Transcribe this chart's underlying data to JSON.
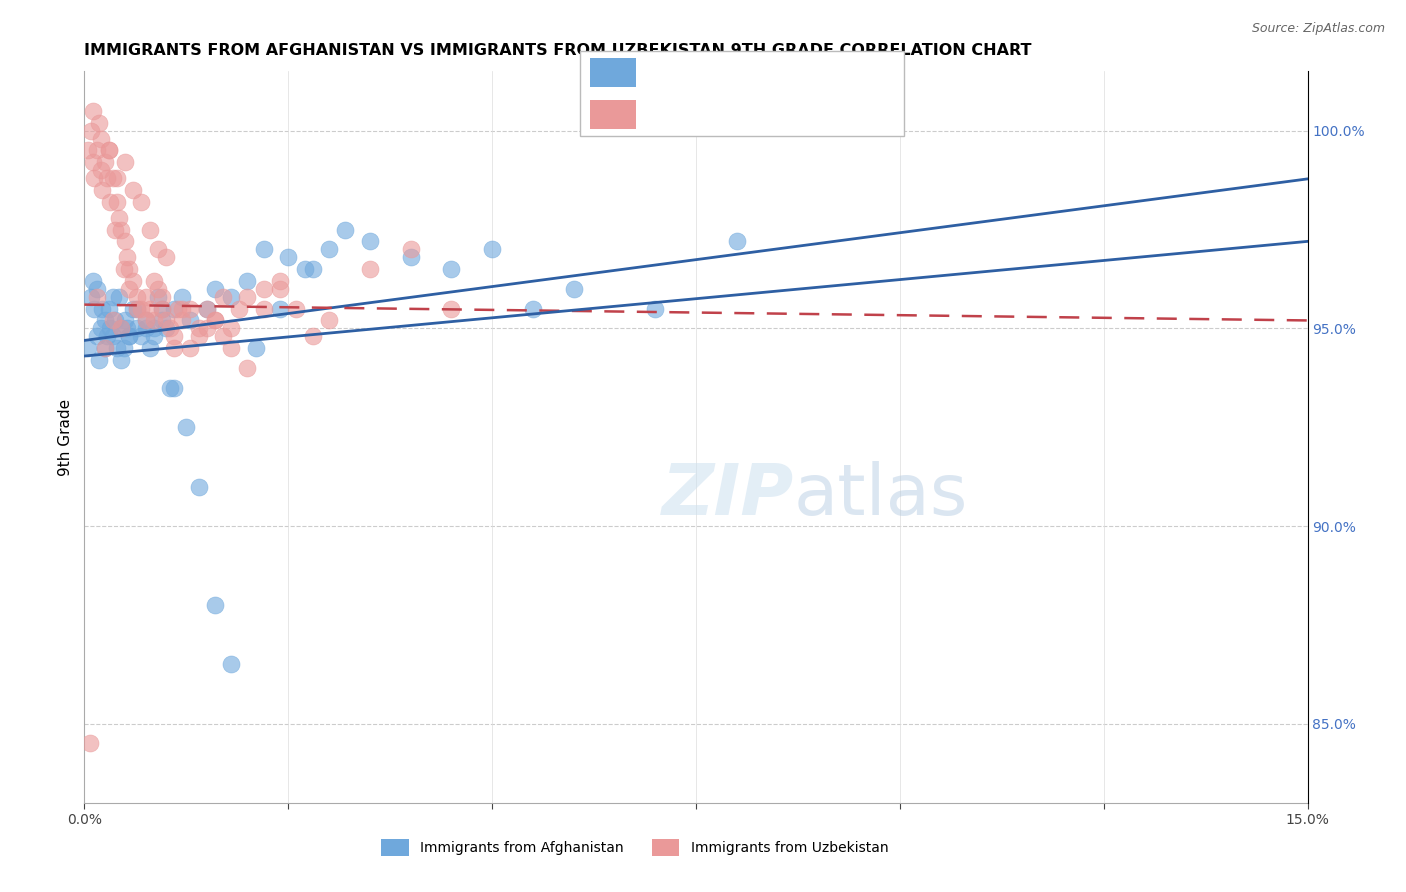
{
  "title": "IMMIGRANTS FROM AFGHANISTAN VS IMMIGRANTS FROM UZBEKISTAN 9TH GRADE CORRELATION CHART",
  "source": "Source: ZipAtlas.com",
  "ylabel": "9th Grade",
  "right_yticks": [
    100.0,
    95.0,
    90.0,
    85.0
  ],
  "xlim": [
    0.0,
    15.0
  ],
  "ylim": [
    83.0,
    101.5
  ],
  "afghanistan_color": "#6fa8dc",
  "uzbekistan_color": "#ea9999",
  "afghanistan_line_color": "#2e5fa3",
  "uzbekistan_line_color": "#c0414a",
  "legend_label1": "Immigrants from Afghanistan",
  "legend_label2": "Immigrants from Uzbekistan",
  "af_x": [
    0.05,
    0.08,
    0.1,
    0.12,
    0.15,
    0.18,
    0.2,
    0.22,
    0.25,
    0.28,
    0.3,
    0.32,
    0.35,
    0.38,
    0.4,
    0.42,
    0.45,
    0.48,
    0.5,
    0.52,
    0.55,
    0.6,
    0.65,
    0.7,
    0.75,
    0.8,
    0.85,
    0.9,
    0.95,
    1.0,
    1.05,
    1.1,
    1.2,
    1.3,
    1.5,
    1.6,
    1.8,
    2.0,
    2.2,
    2.5,
    2.8,
    3.0,
    3.5,
    4.0,
    4.5,
    5.0,
    5.5,
    6.0,
    7.0,
    8.0,
    0.15,
    0.25,
    0.35,
    0.45,
    0.55,
    0.65,
    0.75,
    0.85,
    0.95,
    1.1,
    1.25,
    1.4,
    1.6,
    1.8,
    2.1,
    2.4,
    2.7,
    3.2
  ],
  "af_y": [
    94.5,
    95.8,
    96.2,
    95.5,
    94.8,
    94.2,
    95.0,
    95.5,
    95.2,
    94.8,
    95.5,
    95.0,
    94.8,
    95.2,
    94.5,
    95.8,
    95.0,
    94.5,
    95.2,
    95.0,
    94.8,
    95.5,
    95.0,
    94.8,
    95.2,
    94.5,
    95.0,
    95.8,
    95.2,
    95.0,
    93.5,
    95.5,
    95.8,
    95.2,
    95.5,
    96.0,
    95.8,
    96.2,
    97.0,
    96.8,
    96.5,
    97.0,
    97.2,
    96.8,
    96.5,
    97.0,
    95.5,
    96.0,
    95.5,
    97.2,
    96.0,
    94.5,
    95.8,
    94.2,
    94.8,
    95.5,
    95.0,
    94.8,
    95.5,
    93.5,
    92.5,
    91.0,
    88.0,
    86.5,
    94.5,
    95.5,
    96.5,
    97.5
  ],
  "uz_x": [
    0.05,
    0.08,
    0.1,
    0.12,
    0.15,
    0.18,
    0.2,
    0.22,
    0.25,
    0.28,
    0.3,
    0.32,
    0.35,
    0.38,
    0.4,
    0.42,
    0.45,
    0.48,
    0.5,
    0.52,
    0.55,
    0.6,
    0.65,
    0.7,
    0.75,
    0.8,
    0.85,
    0.9,
    0.95,
    1.0,
    1.05,
    1.1,
    1.15,
    1.2,
    1.3,
    1.4,
    1.5,
    1.6,
    1.7,
    1.8,
    1.9,
    2.0,
    2.2,
    2.4,
    2.6,
    2.8,
    3.0,
    3.5,
    4.0,
    4.5,
    0.1,
    0.2,
    0.3,
    0.4,
    0.5,
    0.6,
    0.7,
    0.8,
    0.9,
    1.0,
    1.2,
    1.4,
    1.6,
    1.8,
    2.0,
    2.2,
    2.4,
    0.15,
    0.25,
    0.35,
    0.45,
    0.55,
    0.65,
    0.75,
    0.85,
    0.95,
    1.1,
    1.3,
    1.5,
    1.7,
    0.07
  ],
  "uz_y": [
    99.5,
    100.0,
    99.2,
    98.8,
    99.5,
    100.2,
    99.0,
    98.5,
    99.2,
    98.8,
    99.5,
    98.2,
    98.8,
    97.5,
    98.2,
    97.8,
    97.5,
    96.5,
    97.2,
    96.8,
    96.5,
    96.2,
    95.8,
    95.5,
    95.8,
    95.5,
    95.2,
    96.0,
    95.5,
    95.2,
    95.0,
    94.8,
    95.5,
    95.2,
    94.5,
    95.0,
    95.5,
    95.2,
    94.8,
    95.0,
    95.5,
    95.8,
    96.0,
    96.2,
    95.5,
    94.8,
    95.2,
    96.5,
    97.0,
    95.5,
    100.5,
    99.8,
    99.5,
    98.8,
    99.2,
    98.5,
    98.2,
    97.5,
    97.0,
    96.8,
    95.5,
    94.8,
    95.2,
    94.5,
    94.0,
    95.5,
    96.0,
    95.8,
    94.5,
    95.2,
    95.0,
    96.0,
    95.5,
    95.2,
    96.2,
    95.8,
    94.5,
    95.5,
    95.0,
    95.8,
    84.5
  ]
}
